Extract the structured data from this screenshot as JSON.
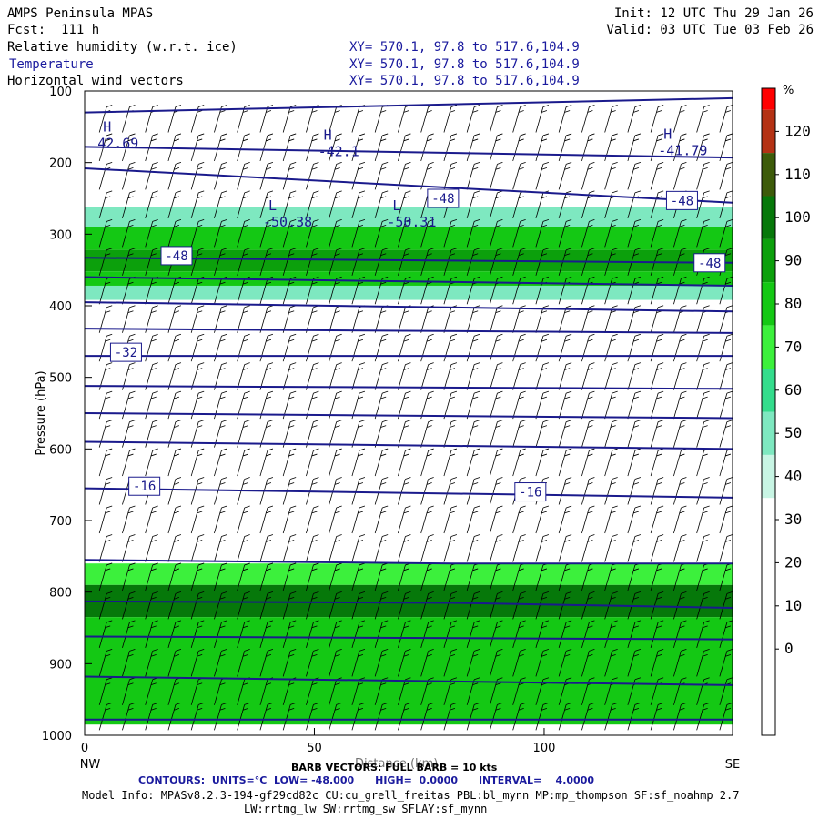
{
  "header": {
    "model": "AMPS Peninsula MPAS",
    "fcst": "Fcst:  111 h",
    "init": "Init: 12 UTC Thu 29 Jan 26",
    "valid": "Valid: 03 UTC Tue 03 Feb 26",
    "fields": [
      {
        "label": "Relative humidity (w.r.t. ice)",
        "xy": "XY= 570.1, 97.8 to 517.6,104.9"
      },
      {
        "label": "Temperature",
        "xy": "XY= 570.1, 97.8 to 517.6,104.9"
      },
      {
        "label": "Horizontal wind vectors",
        "xy": "XY= 570.1, 97.8 to 517.6,104.9"
      }
    ]
  },
  "footer": {
    "barb": "BARB VECTORS: FULL BARB = 10 kts",
    "xlabel": "Distance (km)",
    "contours": "CONTOURS:  UNITS=°C  LOW= -48.000      HIGH=  0.0000      INTERVAL=    4.0000",
    "model_info": "Model Info: MPASv8.2.3-194-gf29cd82c CU:cu_grell_freitas PBL:bl_mynn MP:mp_thompson SF:sf_noahmp 2.7",
    "model_info2": "LW:rrtmg_lw SW:rrtmg_sw SFLAY:sf_mynn"
  },
  "colors": {
    "temperature_contour": "#1a1a8c",
    "rh_scale": [
      "#ffffff",
      "#ffffff",
      "#ffffff",
      "#ffffff",
      "#ffffff",
      "#ffffff",
      "#c8f5e4",
      "#7ee8c0",
      "#34dc8c",
      "#3cf03c",
      "#14c814",
      "#0ca00c",
      "#06780a",
      "#3d5b0a",
      "#b43214",
      "#ff0000"
    ]
  },
  "chart_data": {
    "type": "heatmap",
    "xlabel": "Distance (km)",
    "ylabel": "Pressure (hPa)",
    "xlim": [
      0,
      141
    ],
    "ylim": [
      1000,
      100
    ],
    "x_ticks": [
      0,
      50,
      100
    ],
    "y_ticks": [
      100,
      200,
      300,
      400,
      500,
      600,
      700,
      800,
      900,
      1000
    ],
    "x_end_labels": {
      "left": "NW",
      "right": "SE"
    },
    "colorbar": {
      "unit": "%",
      "labels": [
        "120",
        "110",
        "100",
        "90",
        "80",
        "70",
        "60",
        "50",
        "40",
        "30",
        "20",
        "10",
        "0"
      ],
      "levels": [
        -10,
        0,
        10,
        20,
        30,
        40,
        50,
        60,
        70,
        80,
        90,
        100,
        110,
        120
      ]
    },
    "rh_layers": [
      {
        "p_top": 228,
        "p_bot": 262,
        "rh": 35
      },
      {
        "p_top": 262,
        "p_bot": 290,
        "rh": 55
      },
      {
        "p_top": 290,
        "p_bot": 322,
        "rh": 80
      },
      {
        "p_top": 322,
        "p_bot": 352,
        "rh": 95
      },
      {
        "p_top": 352,
        "p_bot": 372,
        "rh": 80
      },
      {
        "p_top": 372,
        "p_bot": 392,
        "rh": 55
      },
      {
        "p_top": 392,
        "p_bot": 450,
        "rh": 35
      },
      {
        "p_top": 450,
        "p_bot": 525,
        "rh": 38
      },
      {
        "p_top": 760,
        "p_bot": 790,
        "rh": 75
      },
      {
        "p_top": 790,
        "p_bot": 835,
        "rh": 105
      },
      {
        "p_top": 835,
        "p_bot": 985,
        "rh": 88
      }
    ],
    "temperature_contours": [
      {
        "x": [
          0,
          141
        ],
        "p": [
          130,
          110
        ]
      },
      {
        "x": [
          0,
          141
        ],
        "p": [
          178,
          193
        ]
      },
      {
        "x": [
          0,
          141
        ],
        "p": [
          208,
          256
        ]
      },
      {
        "x": [
          0,
          141
        ],
        "p": [
          333,
          340
        ]
      },
      {
        "x": [
          0,
          141
        ],
        "p": [
          360,
          372
        ]
      },
      {
        "x": [
          0,
          141
        ],
        "p": [
          395,
          408
        ]
      },
      {
        "x": [
          0,
          141
        ],
        "p": [
          432,
          438
        ]
      },
      {
        "x": [
          0,
          141
        ],
        "p": [
          470,
          470
        ]
      },
      {
        "x": [
          0,
          141
        ],
        "p": [
          512,
          516
        ]
      },
      {
        "x": [
          0,
          141
        ],
        "p": [
          550,
          557
        ]
      },
      {
        "x": [
          0,
          141
        ],
        "p": [
          590,
          600
        ]
      },
      {
        "x": [
          0,
          141
        ],
        "p": [
          655,
          668
        ]
      },
      {
        "x": [
          0,
          80,
          141
        ],
        "p": [
          755,
          760,
          760
        ]
      },
      {
        "x": [
          0,
          80,
          141
        ],
        "p": [
          813,
          815,
          822
        ]
      },
      {
        "x": [
          0,
          141
        ],
        "p": [
          862,
          866
        ]
      },
      {
        "x": [
          0,
          141
        ],
        "p": [
          918,
          930
        ]
      },
      {
        "x": [
          0,
          141
        ],
        "p": [
          978,
          978
        ]
      }
    ],
    "contour_labels": [
      {
        "text": "-48",
        "x": 20,
        "p": 330
      },
      {
        "text": "-48",
        "x": 78,
        "p": 250
      },
      {
        "text": "-48",
        "x": 130,
        "p": 253
      },
      {
        "text": "-48",
        "x": 136,
        "p": 340
      },
      {
        "text": "-32",
        "x": 9,
        "p": 465
      },
      {
        "text": "-16",
        "x": 13,
        "p": 652
      },
      {
        "text": "-16",
        "x": 97,
        "p": 660
      }
    ],
    "extrema": [
      {
        "kind": "H",
        "value": "42.69",
        "x": 4,
        "p": 172
      },
      {
        "kind": "H",
        "value": "-42.1",
        "x": 52,
        "p": 183
      },
      {
        "kind": "H",
        "value": "-41.79",
        "x": 126,
        "p": 182
      },
      {
        "kind": "L",
        "value": "-50.38",
        "x": 40,
        "p": 282
      },
      {
        "kind": "L",
        "value": "-50.31",
        "x": 67,
        "p": 282
      }
    ],
    "barb_columns_km": [
      4,
      9,
      14,
      19,
      24,
      29,
      34,
      39,
      44,
      49,
      54,
      59,
      64,
      69,
      74,
      79,
      84,
      89,
      94,
      99,
      104,
      109,
      114,
      119,
      124,
      129,
      134,
      139
    ],
    "barb_rows_hPa": [
      140,
      180,
      220,
      260,
      300,
      340,
      380,
      420,
      460,
      500,
      540,
      580,
      620,
      660,
      700,
      740,
      780,
      820,
      860,
      900,
      940,
      975
    ]
  }
}
